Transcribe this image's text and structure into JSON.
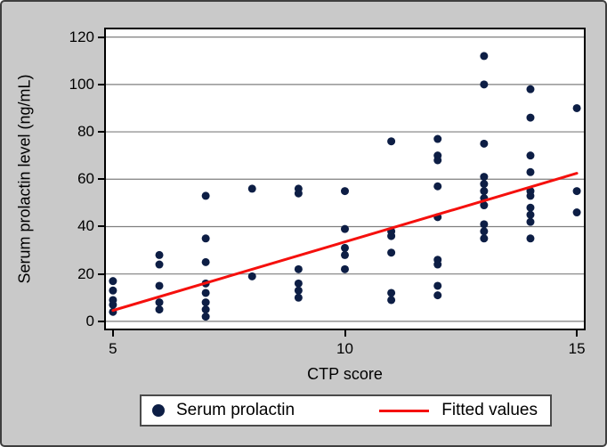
{
  "figure": {
    "background_color": "#c9c9c9",
    "plot_background": "#ffffff",
    "frame_border_color": "#3e3e3e",
    "axis_border_color": "#000000",
    "gridline_color": "#7f7f7f"
  },
  "chart_data": {
    "type": "scatter",
    "title": "",
    "xlabel": "CTP score",
    "ylabel": "Serum prolactin level (ng/mL)",
    "x_ticks": [
      5,
      10,
      15
    ],
    "y_ticks": [
      0,
      20,
      40,
      60,
      80,
      100,
      120
    ],
    "xlim": [
      4.81,
      15.19
    ],
    "ylim": [
      -3.8,
      124
    ],
    "grid": "horizontal",
    "legend_position": "bottom",
    "series": [
      {
        "name": "Serum prolactin",
        "type": "scatter",
        "color": "#0d1e45",
        "marker": "dot",
        "points": [
          [
            5,
            17
          ],
          [
            5,
            13
          ],
          [
            5,
            9
          ],
          [
            5,
            7
          ],
          [
            5,
            4
          ],
          [
            6,
            28
          ],
          [
            6,
            24
          ],
          [
            6,
            15
          ],
          [
            6,
            8
          ],
          [
            6,
            5
          ],
          [
            7,
            53
          ],
          [
            7,
            35
          ],
          [
            7,
            25
          ],
          [
            7,
            16
          ],
          [
            7,
            12
          ],
          [
            7,
            8
          ],
          [
            7,
            5
          ],
          [
            7,
            2
          ],
          [
            8,
            56
          ],
          [
            8,
            19
          ],
          [
            9,
            56
          ],
          [
            9,
            54
          ],
          [
            9,
            22
          ],
          [
            9,
            16
          ],
          [
            9,
            13
          ],
          [
            9,
            10
          ],
          [
            10,
            55
          ],
          [
            10,
            39
          ],
          [
            10,
            31
          ],
          [
            10,
            28
          ],
          [
            10,
            22
          ],
          [
            11,
            76
          ],
          [
            11,
            38
          ],
          [
            11,
            36
          ],
          [
            11,
            29
          ],
          [
            11,
            12
          ],
          [
            11,
            9
          ],
          [
            12,
            77
          ],
          [
            12,
            70
          ],
          [
            12,
            68
          ],
          [
            12,
            57
          ],
          [
            12,
            44
          ],
          [
            12,
            26
          ],
          [
            12,
            24
          ],
          [
            12,
            15
          ],
          [
            12,
            11
          ],
          [
            13,
            112
          ],
          [
            13,
            100
          ],
          [
            13,
            75
          ],
          [
            13,
            61
          ],
          [
            13,
            58
          ],
          [
            13,
            55
          ],
          [
            13,
            52
          ],
          [
            13,
            49
          ],
          [
            13,
            41
          ],
          [
            13,
            38
          ],
          [
            13,
            35
          ],
          [
            14,
            98
          ],
          [
            14,
            86
          ],
          [
            14,
            70
          ],
          [
            14,
            63
          ],
          [
            14,
            55
          ],
          [
            14,
            53
          ],
          [
            14,
            48
          ],
          [
            14,
            45
          ],
          [
            14,
            42
          ],
          [
            14,
            35
          ],
          [
            15,
            90
          ],
          [
            15,
            55
          ],
          [
            15,
            46
          ]
        ]
      },
      {
        "name": "Fitted values",
        "type": "line",
        "color": "#f5100d",
        "points": [
          [
            5,
            4.6
          ],
          [
            15,
            62.5
          ]
        ]
      }
    ]
  }
}
